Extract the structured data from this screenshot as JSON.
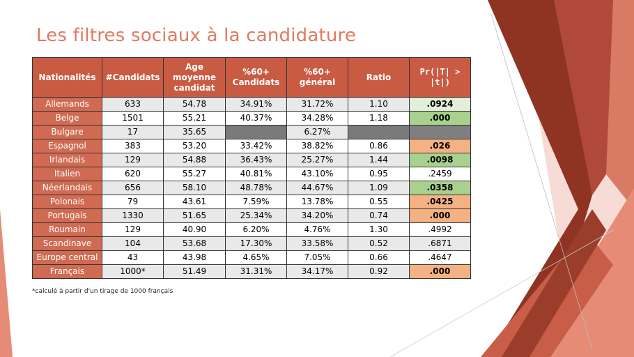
{
  "slide": {
    "title": "Les filtres sociaux à la candidature",
    "footnote": "*calculé à partir d'un tirage de 1000 français"
  },
  "colors": {
    "title": "#e07a5f",
    "header_bg": "#c95b43",
    "nationality_bg": "#d06a52",
    "significant_green": "#a9d18e",
    "light_green": "#e2efd9",
    "orange": "#f4b183",
    "grey": "#7f7f7f"
  },
  "table": {
    "headers": [
      "Nationalités",
      "#Candidats",
      "Age moyenne candidat",
      "%60+ Candidats",
      "%60+ général",
      "Ratio",
      "Pr(|T| > |t|)"
    ],
    "rows": [
      {
        "nationalite": "Allemands",
        "candidats": "633",
        "age": "54.78",
        "pct_cand": "34.91%",
        "pct_gen": "31.72%",
        "ratio": "1.10",
        "pr": ".0924",
        "pr_style": "lightgreen bold"
      },
      {
        "nationalite": "Belge",
        "candidats": "1501",
        "age": "55.21",
        "pct_cand": "40.37%",
        "pct_gen": "34.28%",
        "ratio": "1.18",
        "pr": ".000",
        "pr_style": "green bold"
      },
      {
        "nationalite": "Bulgare",
        "candidats": "17",
        "age": "35.65",
        "pct_cand": "",
        "pct_gen": "6.27%",
        "ratio": "",
        "pr": "",
        "pr_style": "grey",
        "blank_cand": true,
        "blank_ratio": true
      },
      {
        "nationalite": "Espagnol",
        "candidats": "383",
        "age": "53.20",
        "pct_cand": "33.42%",
        "pct_gen": "38.82%",
        "ratio": "0.86",
        "pr": ".026",
        "pr_style": "orange bold"
      },
      {
        "nationalite": "Irlandais",
        "candidats": "129",
        "age": "54.88",
        "pct_cand": "36.43%",
        "pct_gen": "25.27%",
        "ratio": "1.44",
        "pr": ".0098",
        "pr_style": "green bold"
      },
      {
        "nationalite": "Italien",
        "candidats": "620",
        "age": "55.27",
        "pct_cand": "40.81%",
        "pct_gen": "43.10%",
        "ratio": "0.95",
        "pr": ".2459",
        "pr_style": ""
      },
      {
        "nationalite": "Néerlandais",
        "candidats": "656",
        "age": "58.10",
        "pct_cand": "48.78%",
        "pct_gen": "44.67%",
        "ratio": "1.09",
        "pr": ".0358",
        "pr_style": "green bold"
      },
      {
        "nationalite": "Polonais",
        "candidats": "79",
        "age": "43.61",
        "pct_cand": "7.59%",
        "pct_gen": "13.78%",
        "ratio": "0.55",
        "pr": ".0425",
        "pr_style": "orange bold"
      },
      {
        "nationalite": "Portugais",
        "candidats": "1330",
        "age": "51.65",
        "pct_cand": "25.34%",
        "pct_gen": "34.20%",
        "ratio": "0.74",
        "pr": ".000",
        "pr_style": "orange bold"
      },
      {
        "nationalite": "Roumain",
        "candidats": "129",
        "age": "40.90",
        "pct_cand": "6.20%",
        "pct_gen": "4.76%",
        "ratio": "1.30",
        "pr": ".4992",
        "pr_style": ""
      },
      {
        "nationalite": "Scandinave",
        "candidats": "104",
        "age": "53.68",
        "pct_cand": "17.30%",
        "pct_gen": "33.58%",
        "ratio": "0.52",
        "pr": ".6871",
        "pr_style": ""
      },
      {
        "nationalite": "Europe central",
        "candidats": "43",
        "age": "43.98",
        "pct_cand": "4.65%",
        "pct_gen": "7.05%",
        "ratio": "0.66",
        "pr": ".4647",
        "pr_style": ""
      },
      {
        "nationalite": "Français",
        "candidats": "1000*",
        "age": "51.49",
        "pct_cand": "31.31%",
        "pct_gen": "34.17%",
        "ratio": "0.92",
        "pr": ".000",
        "pr_style": "orange bold"
      }
    ]
  }
}
